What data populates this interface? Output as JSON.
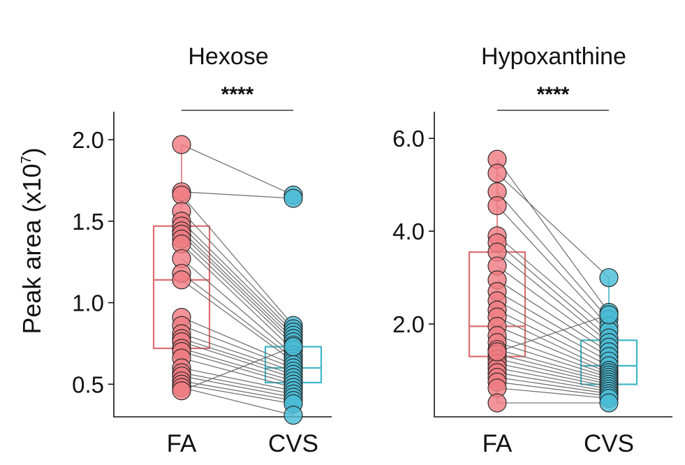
{
  "ylabel": "Peak area (x10",
  "ylabel_sup": "7",
  "ylabel_close": ")",
  "colors": {
    "fa": "#ef7d82",
    "cvs": "#4bbcd6",
    "fa_box": "#de6d70",
    "cvs_box": "#3db6c8",
    "line": "#6b6b6b"
  },
  "chart_data": [
    {
      "type": "scatter",
      "title": "Hexose",
      "significance": "****",
      "categories": [
        "FA",
        "CVS"
      ],
      "ylim": [
        0.3,
        2.15
      ],
      "ticks": [
        0.5,
        1.0,
        1.5,
        2.0
      ],
      "tick_labels": [
        "0.5",
        "1.0",
        "1.5",
        "2.0"
      ],
      "box": {
        "FA": {
          "q1": 0.72,
          "median": 1.14,
          "q3": 1.47,
          "whisker_low": 0.46,
          "whisker_high": 1.97
        },
        "CVS": {
          "q1": 0.51,
          "median": 0.6,
          "q3": 0.73,
          "whisker_low": 0.31,
          "whisker_high": 0.87
        }
      },
      "pairs": [
        [
          1.97,
          1.66
        ],
        [
          1.68,
          1.64
        ],
        [
          1.66,
          0.86
        ],
        [
          1.56,
          0.84
        ],
        [
          1.5,
          0.82
        ],
        [
          1.47,
          0.8
        ],
        [
          1.44,
          0.78
        ],
        [
          1.42,
          0.76
        ],
        [
          1.39,
          0.74
        ],
        [
          1.36,
          0.71
        ],
        [
          1.27,
          0.68
        ],
        [
          1.18,
          0.66
        ],
        [
          1.14,
          0.64
        ],
        [
          0.91,
          0.62
        ],
        [
          0.86,
          0.6
        ],
        [
          0.81,
          0.58
        ],
        [
          0.78,
          0.56
        ],
        [
          0.76,
          0.54
        ],
        [
          0.72,
          0.52
        ],
        [
          0.7,
          0.5
        ],
        [
          0.66,
          0.48
        ],
        [
          0.6,
          0.46
        ],
        [
          0.57,
          0.44
        ],
        [
          0.55,
          0.42
        ],
        [
          0.52,
          0.4
        ],
        [
          0.5,
          0.38
        ],
        [
          0.48,
          0.31
        ],
        [
          0.46,
          0.73
        ]
      ]
    },
    {
      "type": "scatter",
      "title": "Hypoxanthine",
      "significance": "****",
      "categories": [
        "FA",
        "CVS"
      ],
      "ylim": [
        0.0,
        6.5
      ],
      "ticks": [
        2.0,
        4.0,
        6.0
      ],
      "tick_labels": [
        "2.0",
        "4.0",
        "6.0"
      ],
      "box": {
        "FA": {
          "q1": 1.3,
          "median": 1.95,
          "q3": 3.55,
          "whisker_low": 0.3,
          "whisker_high": 5.5
        },
        "CVS": {
          "q1": 0.7,
          "median": 1.1,
          "q3": 1.65,
          "whisker_low": 0.3,
          "whisker_high": 3.0
        }
      },
      "pairs": [
        [
          5.55,
          2.25
        ],
        [
          5.25,
          3.0
        ],
        [
          4.85,
          2.1
        ],
        [
          4.55,
          1.95
        ],
        [
          3.9,
          1.85
        ],
        [
          3.75,
          1.7
        ],
        [
          3.55,
          1.6
        ],
        [
          3.25,
          1.5
        ],
        [
          2.95,
          1.4
        ],
        [
          2.7,
          1.3
        ],
        [
          2.5,
          1.2
        ],
        [
          2.3,
          1.1
        ],
        [
          2.15,
          1.0
        ],
        [
          1.95,
          0.95
        ],
        [
          1.75,
          0.9
        ],
        [
          1.6,
          0.85
        ],
        [
          1.45,
          0.8
        ],
        [
          1.35,
          0.75
        ],
        [
          1.25,
          0.7
        ],
        [
          1.15,
          0.65
        ],
        [
          1.05,
          0.6
        ],
        [
          0.95,
          0.55
        ],
        [
          0.85,
          0.5
        ],
        [
          0.75,
          0.45
        ],
        [
          0.62,
          0.4
        ],
        [
          0.3,
          0.3
        ],
        [
          1.4,
          2.2
        ]
      ]
    }
  ]
}
